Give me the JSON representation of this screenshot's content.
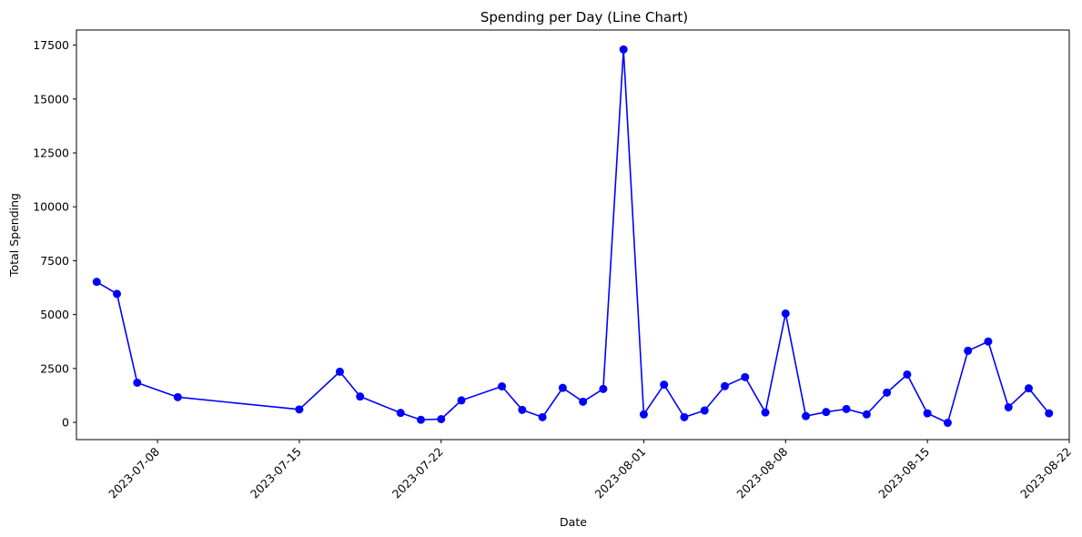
{
  "colors": {
    "series_color": "#0000ff",
    "axes_color": "#000000",
    "background": "#ffffff"
  },
  "chart_data": {
    "type": "line",
    "title": "Spending per Day (Line Chart)",
    "xlabel": "Date",
    "ylabel": "Total Spending",
    "xlim": [
      "2023-07-04",
      "2023-08-22"
    ],
    "ylim": [
      -800,
      18200
    ],
    "grid": false,
    "marker": "circle",
    "x_ticks": [
      "2023-07-08",
      "2023-07-15",
      "2023-07-22",
      "2023-08-01",
      "2023-08-08",
      "2023-08-15",
      "2023-08-22"
    ],
    "y_ticks": [
      "0",
      "2500",
      "5000",
      "7500",
      "10000",
      "12500",
      "15000",
      "17500"
    ],
    "series": [
      {
        "x": [
          "2023-07-05",
          "2023-07-06",
          "2023-07-07",
          "2023-07-09",
          "2023-07-15",
          "2023-07-17",
          "2023-07-18",
          "2023-07-20",
          "2023-07-21",
          "2023-07-22",
          "2023-07-23",
          "2023-07-25",
          "2023-07-26",
          "2023-07-27",
          "2023-07-28",
          "2023-07-29",
          "2023-07-30",
          "2023-07-31",
          "2023-08-01",
          "2023-08-02",
          "2023-08-03",
          "2023-08-04",
          "2023-08-05",
          "2023-08-06",
          "2023-08-07",
          "2023-08-08",
          "2023-08-09",
          "2023-08-10",
          "2023-08-11",
          "2023-08-12",
          "2023-08-13",
          "2023-08-14",
          "2023-08-15",
          "2023-08-16",
          "2023-08-17",
          "2023-08-18",
          "2023-08-19",
          "2023-08-20",
          "2023-08-21"
        ],
        "y": [
          6520,
          5960,
          1840,
          1170,
          600,
          2350,
          1200,
          440,
          120,
          150,
          1020,
          1670,
          580,
          240,
          1600,
          960,
          1550,
          17300,
          370,
          1750,
          240,
          550,
          1680,
          2100,
          460,
          5050,
          290,
          480,
          620,
          370,
          1380,
          2220,
          420,
          -20,
          3320,
          3750,
          700,
          1580,
          420
        ]
      }
    ]
  }
}
